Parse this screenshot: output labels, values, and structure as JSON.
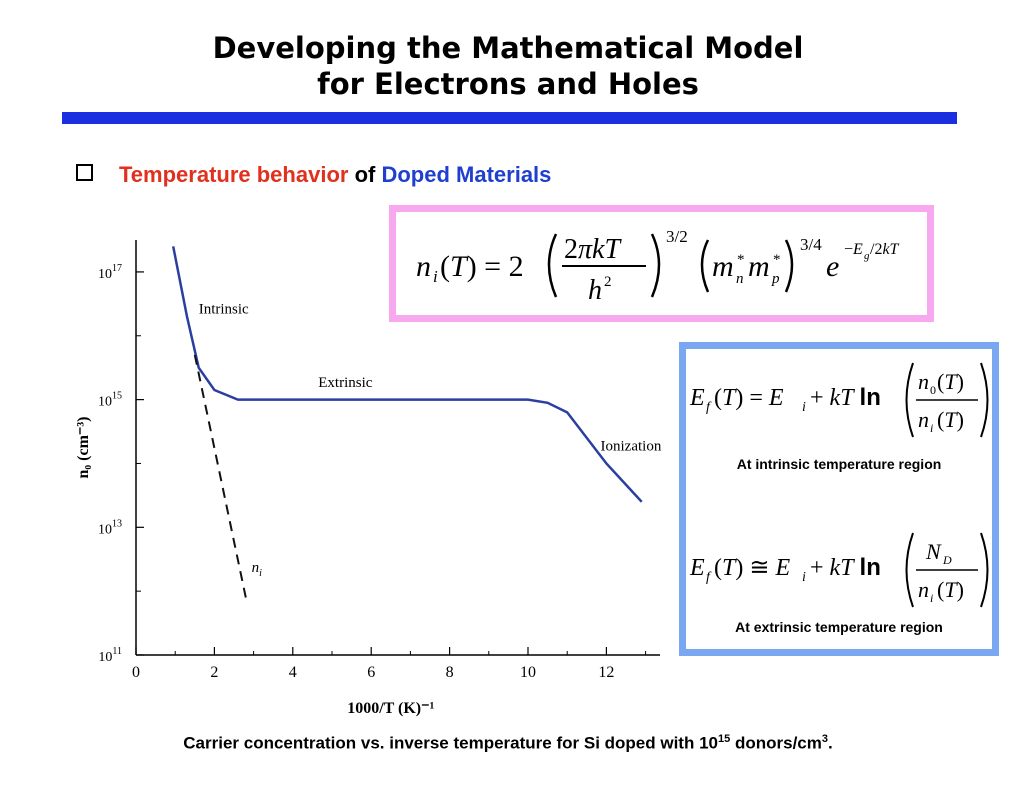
{
  "slide": {
    "title_line1": "Developing the Mathematical Model",
    "title_line2": "for Electrons and Holes",
    "bullet": {
      "part1": "Temperature behavior",
      "part2": "of",
      "part3": "Doped Materials"
    },
    "caption": {
      "text": "Carrier concentration vs. inverse temperature for Si doped with 10",
      "exp": "15",
      "tail": " donors/cm",
      "exp2": "3",
      "end": "."
    },
    "region_labels": {
      "intrinsic": "At intrinsic temperature region",
      "extrinsic": "At extrinsic temperature region"
    },
    "colors": {
      "title_bar": "#1b2fe0",
      "formula_border": "#f7a8ee",
      "side_border": "#7aa7f2",
      "curve": "#2a3fa0",
      "red_text": "#e0301e",
      "blue_text": "#1f3fcf"
    }
  },
  "chart_data": {
    "type": "line",
    "xlabel": "1000/T (K)⁻¹",
    "ylabel": "n₀ (cm⁻³)",
    "xlim": [
      0,
      13
    ],
    "ylim_log10": [
      11,
      17.5
    ],
    "x_ticks": [
      "0",
      "2",
      "4",
      "6",
      "8",
      "10",
      "12"
    ],
    "y_ticks": [
      {
        "base": "10",
        "exp": "17",
        "log": 17
      },
      {
        "base": "10",
        "exp": "15",
        "log": 15
      },
      {
        "base": "10",
        "exp": "13",
        "log": 13
      },
      {
        "base": "10",
        "exp": "11",
        "log": 11
      }
    ],
    "series": [
      {
        "name": "n₀",
        "points": [
          [
            0.95,
            17.4
          ],
          [
            1.3,
            16.3
          ],
          [
            1.6,
            15.5
          ],
          [
            2.0,
            15.15
          ],
          [
            2.6,
            15.0
          ],
          [
            4,
            15.0
          ],
          [
            8,
            15.0
          ],
          [
            10,
            15.0
          ],
          [
            10.5,
            14.95
          ],
          [
            11,
            14.8
          ],
          [
            12,
            14.0
          ],
          [
            12.9,
            13.4
          ]
        ]
      },
      {
        "name": "nᵢ",
        "dashed": true,
        "points": [
          [
            1.5,
            15.7
          ],
          [
            2.8,
            11.9
          ]
        ]
      }
    ],
    "annotations": {
      "intrinsic": "Intrinsic",
      "extrinsic": "Extrinsic",
      "ionization": "Ionization",
      "ni": "n",
      "ni_sub": "i"
    }
  }
}
